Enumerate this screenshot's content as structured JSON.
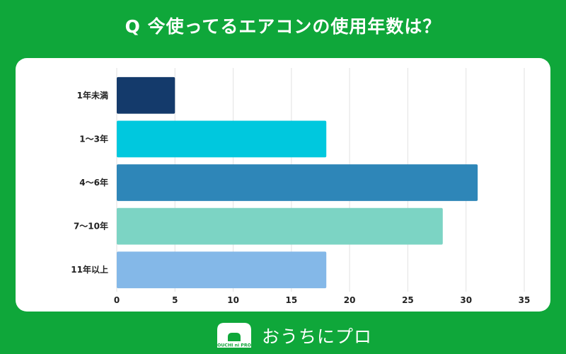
{
  "title": "Q 今使ってるエアコンの使用年数は？",
  "chart_data": {
    "type": "bar",
    "orientation": "horizontal",
    "categories": [
      "1年未満",
      "1～3年",
      "4～6年",
      "7～10年",
      "11年以上"
    ],
    "values": [
      5,
      18,
      31,
      28,
      18
    ],
    "colors": [
      "#143a6b",
      "#00c8de",
      "#2e86b8",
      "#7cd4c4",
      "#84b8e8"
    ],
    "xlim": [
      0,
      35
    ],
    "xticks": [
      0,
      5,
      10,
      15,
      20,
      25,
      30,
      35
    ],
    "grid": true,
    "legend": "none"
  },
  "logo": {
    "icon_text": "OUCHI ni PRO",
    "name": "おうちにプロ"
  }
}
